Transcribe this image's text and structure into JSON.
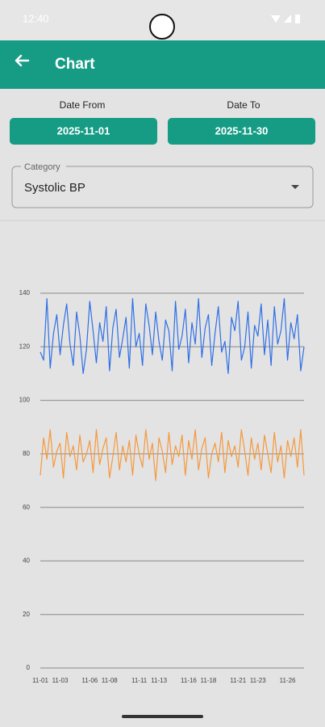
{
  "status_bar": {
    "time": "12:40"
  },
  "app_bar": {
    "title": "Chart"
  },
  "filters": {
    "date_from": {
      "label": "Date From",
      "value": "2025-11-01"
    },
    "date_to": {
      "label": "Date To",
      "value": "2025-11-30"
    },
    "category": {
      "label": "Category",
      "value": "Systolic BP"
    }
  },
  "chart_data": {
    "type": "line",
    "categories": [
      "11-01",
      null,
      null,
      null,
      null,
      null,
      "11-03",
      null,
      null,
      null,
      null,
      null,
      null,
      null,
      null,
      "11-06",
      null,
      null,
      null,
      null,
      null,
      "11-08",
      null,
      null,
      null,
      null,
      null,
      null,
      null,
      null,
      "11-11",
      null,
      null,
      null,
      null,
      null,
      "11-13",
      null,
      null,
      null,
      null,
      null,
      null,
      null,
      null,
      "11-16",
      null,
      null,
      null,
      null,
      null,
      "11-18",
      null,
      null,
      null,
      null,
      null,
      null,
      null,
      null,
      "11-21",
      null,
      null,
      null,
      null,
      null,
      "11-23",
      null,
      null,
      null,
      null,
      null,
      null,
      null,
      null,
      "11-26",
      null,
      null,
      null,
      null,
      null
    ],
    "series": [
      {
        "color": "#2f6fe6",
        "values": [
          118,
          115,
          138,
          112,
          125,
          132,
          117,
          128,
          136,
          121,
          113,
          133,
          124,
          110,
          119,
          137,
          126,
          114,
          129,
          122,
          135,
          111,
          127,
          134,
          116,
          123,
          131,
          112,
          138,
          120,
          125,
          113,
          136,
          128,
          117,
          133,
          122,
          115,
          130,
          126,
          111,
          137,
          119,
          124,
          134,
          114,
          129,
          121,
          138,
          116,
          127,
          132,
          113,
          125,
          135,
          118,
          122,
          110,
          131,
          126,
          137,
          115,
          120,
          133,
          112,
          128,
          124,
          136,
          117,
          130,
          113,
          135,
          121,
          126,
          138,
          115,
          129,
          123,
          132,
          111,
          120
        ]
      },
      {
        "color": "#f5983c",
        "values": [
          72,
          86,
          78,
          89,
          75,
          81,
          84,
          71,
          88,
          79,
          83,
          74,
          87,
          77,
          80,
          85,
          73,
          89,
          76,
          82,
          86,
          71,
          79,
          88,
          74,
          83,
          77,
          85,
          72,
          87,
          80,
          75,
          89,
          78,
          84,
          70,
          86,
          81,
          73,
          88,
          76,
          83,
          79,
          87,
          72,
          85,
          78,
          89,
          74,
          82,
          86,
          71,
          80,
          84,
          77,
          88,
          73,
          85,
          79,
          83,
          75,
          89,
          81,
          72,
          86,
          78,
          84,
          74,
          87,
          80,
          73,
          88,
          77,
          83,
          71,
          85,
          79,
          86,
          75,
          89,
          72
        ]
      }
    ],
    "ylim": [
      0,
      140
    ],
    "yticks": [
      0,
      20,
      40,
      60,
      80,
      100,
      120,
      140
    ],
    "grid": true
  }
}
